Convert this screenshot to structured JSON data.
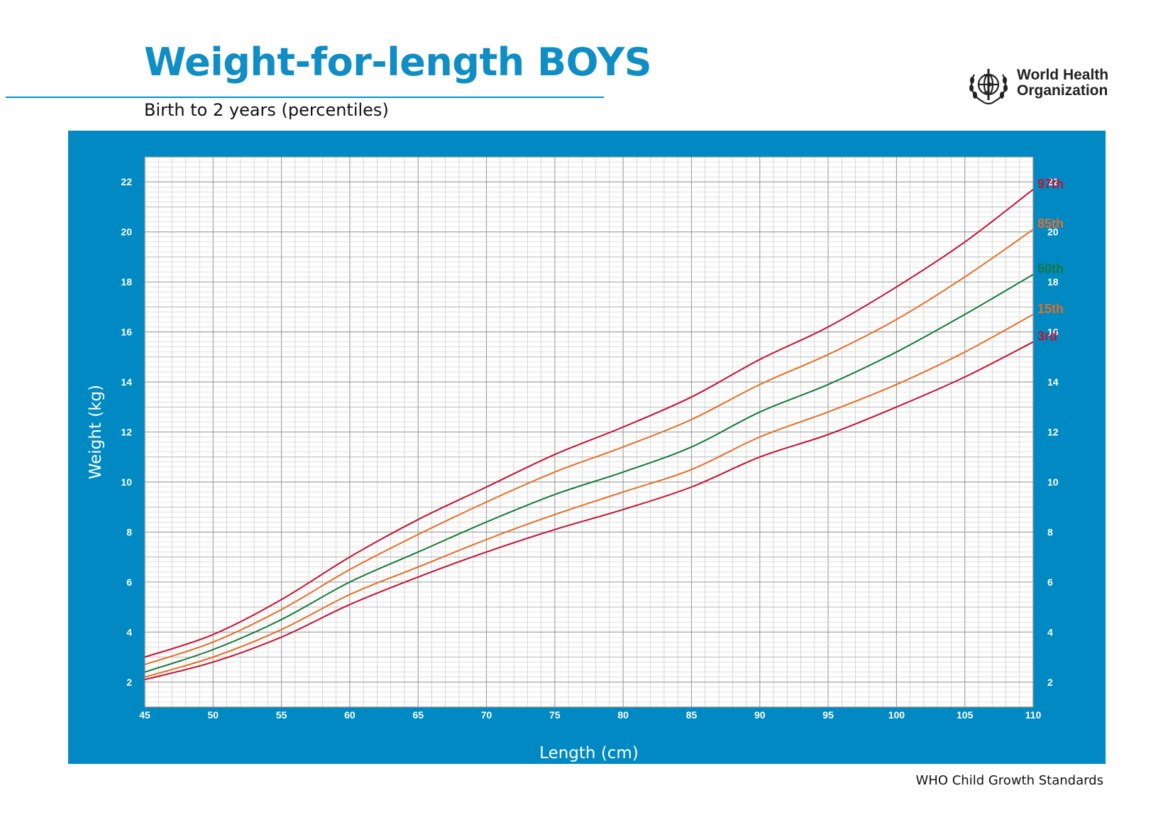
{
  "header": {
    "title": "Weight-for-length BOYS",
    "subtitle": "Birth to 2 years (percentiles)"
  },
  "logo": {
    "icon": "who-emblem-icon",
    "line1": "World Health",
    "line2": "Organization"
  },
  "footer": {
    "text": "WHO Child Growth Standards"
  },
  "colors": {
    "accent": "#0f8dc5",
    "panel": "#0089c2",
    "grid": "#b3b3b3",
    "series_97th": "#c8102e",
    "series_85th": "#e96d24",
    "series_50th": "#147a3c",
    "series_15th": "#e96d24",
    "series_3rd": "#c8102e"
  },
  "chart_data": {
    "type": "line",
    "title": "Weight-for-length BOYS",
    "subtitle": "Birth to 2 years (percentiles)",
    "xlabel": "Length (cm)",
    "ylabel": "Weight (kg)",
    "xlim": [
      45,
      110
    ],
    "ylim": [
      1,
      23
    ],
    "xticks": [
      45,
      50,
      55,
      60,
      65,
      70,
      75,
      80,
      85,
      90,
      95,
      100,
      105,
      110
    ],
    "yticks": [
      2,
      4,
      6,
      8,
      10,
      12,
      14,
      16,
      18,
      20,
      22
    ],
    "grid": true,
    "x": [
      45,
      50,
      55,
      60,
      65,
      70,
      75,
      80,
      85,
      90,
      95,
      100,
      105,
      110
    ],
    "series": [
      {
        "name": "97th",
        "color": "#c8102e",
        "values": [
          3.0,
          3.9,
          5.3,
          7.0,
          8.5,
          9.8,
          11.1,
          12.2,
          13.4,
          14.9,
          16.2,
          17.8,
          19.6,
          21.7
        ]
      },
      {
        "name": "85th",
        "color": "#e96d24",
        "values": [
          2.7,
          3.6,
          4.9,
          6.5,
          7.9,
          9.2,
          10.4,
          11.4,
          12.5,
          13.9,
          15.1,
          16.5,
          18.2,
          20.1
        ]
      },
      {
        "name": "50th",
        "color": "#147a3c",
        "values": [
          2.4,
          3.3,
          4.5,
          6.0,
          7.2,
          8.4,
          9.5,
          10.4,
          11.4,
          12.8,
          13.9,
          15.2,
          16.7,
          18.3
        ]
      },
      {
        "name": "15th",
        "color": "#e96d24",
        "values": [
          2.2,
          3.0,
          4.1,
          5.5,
          6.6,
          7.7,
          8.7,
          9.6,
          10.5,
          11.8,
          12.8,
          13.9,
          15.2,
          16.7
        ]
      },
      {
        "name": "3rd",
        "color": "#c8102e",
        "values": [
          2.1,
          2.8,
          3.8,
          5.1,
          6.2,
          7.2,
          8.1,
          8.9,
          9.8,
          11.0,
          11.9,
          13.0,
          14.2,
          15.6
        ]
      }
    ]
  }
}
